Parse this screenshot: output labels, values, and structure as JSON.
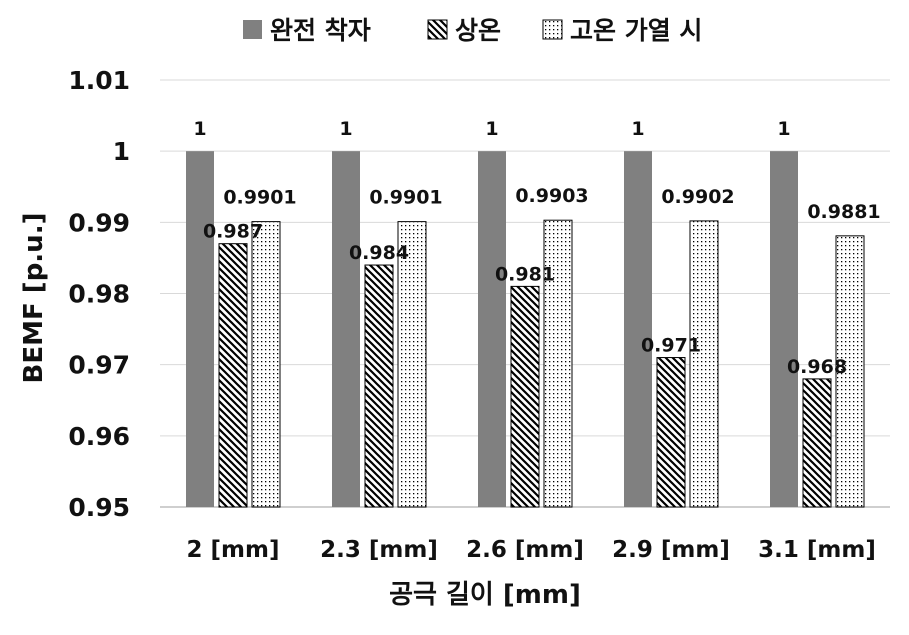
{
  "chart_data": {
    "type": "bar",
    "title": "",
    "xlabel": "공극 길이 [mm]",
    "ylabel": "BEMF [p.u.]",
    "categories": [
      "2 [mm]",
      "2.3 [mm]",
      "2.6 [mm]",
      "2.9 [mm]",
      "3.1 [mm]"
    ],
    "ylim": [
      0.95,
      1.01
    ],
    "yticks": [
      0.95,
      0.96,
      0.97,
      0.98,
      0.99,
      1.0,
      1.01
    ],
    "ytick_labels": [
      "0.95",
      "0.96",
      "0.97",
      "0.98",
      "0.99",
      "1",
      "1.01"
    ],
    "grid": true,
    "legend_position": "top",
    "series": [
      {
        "name": "완전 착자",
        "values": [
          1,
          1,
          1,
          1,
          1
        ],
        "labels": [
          "1",
          "1",
          "1",
          "1",
          "1"
        ],
        "fill": "solid",
        "color": "#808080"
      },
      {
        "name": "상온",
        "values": [
          0.987,
          0.984,
          0.981,
          0.971,
          0.968
        ],
        "labels": [
          "0.987",
          "0.984",
          "0.981",
          "0.971",
          "0.968"
        ],
        "fill": "diagonal-hatch",
        "color": "#000000"
      },
      {
        "name": "고온 가열 시",
        "values": [
          0.9901,
          0.9901,
          0.9903,
          0.9902,
          0.9881
        ],
        "labels": [
          "0.9901",
          "0.9901",
          "0.9903",
          "0.9902",
          "0.9881"
        ],
        "fill": "dotted",
        "color": "#000000"
      }
    ]
  }
}
